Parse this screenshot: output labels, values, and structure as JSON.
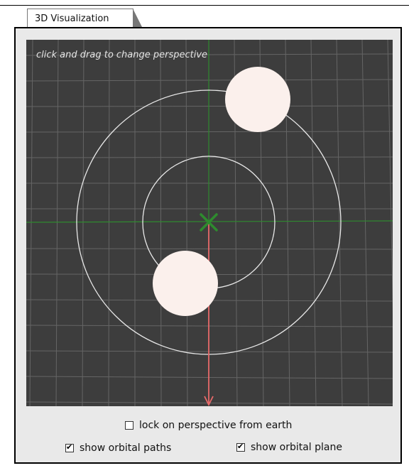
{
  "tab": {
    "label": "3D Visualization"
  },
  "viewport": {
    "hint": "click and drag to change perspective"
  },
  "controls": {
    "lock_perspective": {
      "label": "lock on perspective from earth",
      "checked": false
    },
    "show_orbital_paths": {
      "label": "show orbital paths",
      "checked": true
    },
    "show_orbital_plane": {
      "label": "show orbital plane",
      "checked": true
    }
  },
  "colors": {
    "background": "#3d3d3d",
    "grid": "#6a6a6a",
    "axis": "#2f8a2f",
    "orbit": "#e8e8e8",
    "body": "#fbf0ec",
    "arrow": "#e86a6a",
    "center_marker": "#2e8b2e"
  },
  "icons": {
    "center": "x-mark-icon",
    "checkbox": "checkbox-icon"
  }
}
